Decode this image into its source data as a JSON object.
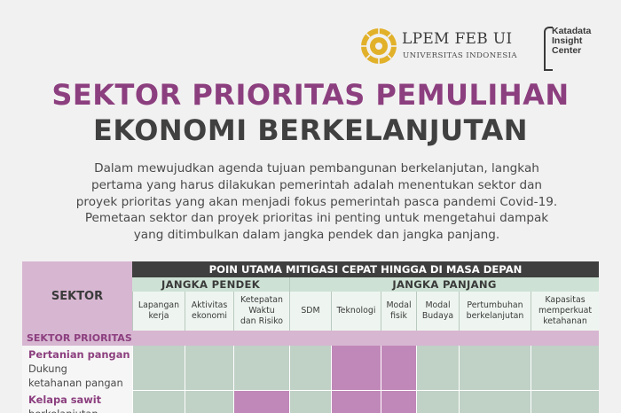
{
  "logos": {
    "lpem_title": "LPEM FEB UI",
    "lpem_subtitle": "UNIVERSITAS INDONESIA",
    "katadata_lines": [
      "Katadata",
      "Insight",
      "Center"
    ]
  },
  "title": {
    "line1": "SEKTOR PRIORITAS PEMULIHAN",
    "line2": "EKONOMI BERKELANJUTAN"
  },
  "intro_lines": [
    "Dalam mewujudkan agenda tujuan pembangunan berkelanjutan, langkah",
    "pertama yang harus dilakukan  pemerintah adalah menentukan sektor dan",
    "proyek prioritas yang akan menjadi fokus pemerintah pasca pandemi Covid-19.",
    "Pemetaan sektor dan proyek prioritas ini penting untuk mengetahui dampak",
    "yang ditimbulkan dalam jangka pendek dan jangka panjang."
  ],
  "table": {
    "sektor_header": "SEKTOR",
    "main_header": "POIN UTAMA MITIGASI CEPAT HINGGA DI MASA DEPAN",
    "group_short": "JANGKA PENDEK",
    "group_long": "JANGKA PANJANG",
    "columns": [
      [
        "Lapangan",
        "kerja"
      ],
      [
        "Aktivitas",
        "ekonomi"
      ],
      [
        "Ketepatan",
        "Waktu",
        "dan Risiko"
      ],
      [
        "SDM"
      ],
      [
        "Teknologi"
      ],
      [
        "Modal",
        "fisik"
      ],
      [
        "Modal",
        "Budaya"
      ],
      [
        "Pertumbuhan",
        "berkelanjutan"
      ],
      [
        "Kapasitas",
        "memperkuat",
        "ketahanan"
      ]
    ],
    "band_label": "SEKTOR PRIORITAS",
    "rows": [
      {
        "name": "Pertanian pangan",
        "desc_lines": [
          "Dukung",
          "ketahanan pangan"
        ],
        "cells": [
          "g",
          "g",
          "g",
          "g",
          "p",
          "p",
          "g",
          "g",
          "g"
        ]
      },
      {
        "name": "Kelapa sawit",
        "desc_lines": [
          "berkelanjutan"
        ],
        "cells": [
          "g",
          "g",
          "p",
          "g",
          "p",
          "p",
          "g",
          "g",
          "g"
        ]
      }
    ]
  },
  "colors": {
    "accent_purple": "#8c3f7f",
    "header_dark": "#3f3f3f",
    "group_green": "#cde2d4",
    "cell_green": "#c0d1c6",
    "cell_purple": "#c088b8",
    "band_pink": "#d7b6d1"
  }
}
